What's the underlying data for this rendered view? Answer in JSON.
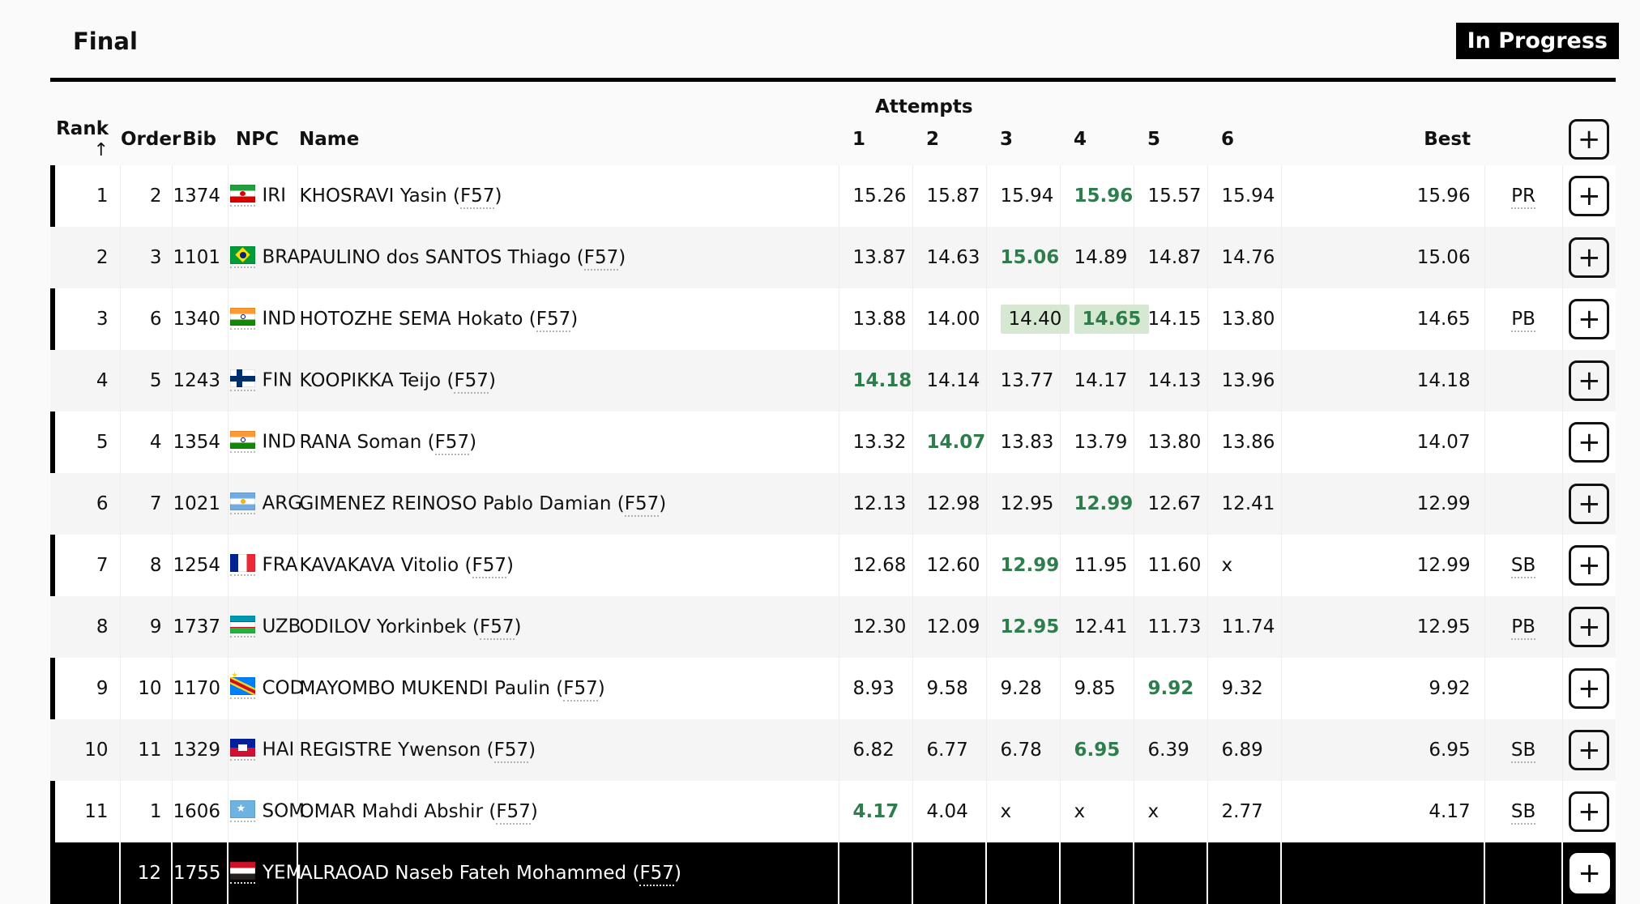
{
  "header": {
    "title": "Final",
    "status": "In Progress",
    "status_bg": "#000000",
    "status_text_color": "#ffffff"
  },
  "table": {
    "attempts_group_label": "Attempts",
    "columns": {
      "rank": "Rank",
      "sort_arrow": "↑",
      "order": "Order",
      "bib": "Bib",
      "npc": "NPC",
      "name": "Name",
      "attempt_numbers": [
        "1",
        "2",
        "3",
        "4",
        "5",
        "6"
      ],
      "best": "Best",
      "add_button": "+"
    },
    "colors": {
      "best_attempt_text": "#2f7d4d",
      "recent_attempt_highlight": "#d6e8d1",
      "row_marker": "#000000",
      "dark_row_bg": "#000000"
    },
    "rows": [
      {
        "rank": "1",
        "order": "2",
        "bib": "1374",
        "npc": "IRI",
        "name": "KHOSRAVI Yasin",
        "sport_class": "F57",
        "attempts": [
          {
            "v": "15.26"
          },
          {
            "v": "15.87"
          },
          {
            "v": "15.94"
          },
          {
            "v": "15.96",
            "green": true
          },
          {
            "v": "15.57"
          },
          {
            "v": "15.94"
          }
        ],
        "best": "15.96",
        "record": "PR",
        "marker": true,
        "dark": false
      },
      {
        "rank": "2",
        "order": "3",
        "bib": "1101",
        "npc": "BRA",
        "name": "PAULINO dos SANTOS Thiago",
        "sport_class": "F57",
        "attempts": [
          {
            "v": "13.87"
          },
          {
            "v": "14.63"
          },
          {
            "v": "15.06",
            "green": true
          },
          {
            "v": "14.89"
          },
          {
            "v": "14.87"
          },
          {
            "v": "14.76"
          }
        ],
        "best": "15.06",
        "record": "",
        "marker": false,
        "dark": false
      },
      {
        "rank": "3",
        "order": "6",
        "bib": "1340",
        "npc": "IND",
        "name": "HOTOZHE SEMA Hokato",
        "sport_class": "F57",
        "attempts": [
          {
            "v": "13.88"
          },
          {
            "v": "14.00"
          },
          {
            "v": "14.40",
            "highlight": true
          },
          {
            "v": "14.65",
            "green": true,
            "highlight": true
          },
          {
            "v": "14.15"
          },
          {
            "v": "13.80"
          }
        ],
        "best": "14.65",
        "record": "PB",
        "marker": true,
        "dark": false
      },
      {
        "rank": "4",
        "order": "5",
        "bib": "1243",
        "npc": "FIN",
        "name": "KOOPIKKA Teijo",
        "sport_class": "F57",
        "attempts": [
          {
            "v": "14.18",
            "green": true
          },
          {
            "v": "14.14"
          },
          {
            "v": "13.77"
          },
          {
            "v": "14.17"
          },
          {
            "v": "14.13"
          },
          {
            "v": "13.96"
          }
        ],
        "best": "14.18",
        "record": "",
        "marker": false,
        "dark": false
      },
      {
        "rank": "5",
        "order": "4",
        "bib": "1354",
        "npc": "IND",
        "name": "RANA Soman",
        "sport_class": "F57",
        "attempts": [
          {
            "v": "13.32"
          },
          {
            "v": "14.07",
            "green": true
          },
          {
            "v": "13.83"
          },
          {
            "v": "13.79"
          },
          {
            "v": "13.80"
          },
          {
            "v": "13.86"
          }
        ],
        "best": "14.07",
        "record": "",
        "marker": true,
        "dark": false
      },
      {
        "rank": "6",
        "order": "7",
        "bib": "1021",
        "npc": "ARG",
        "name": "GIMENEZ REINOSO Pablo Damian",
        "sport_class": "F57",
        "attempts": [
          {
            "v": "12.13"
          },
          {
            "v": "12.98"
          },
          {
            "v": "12.95"
          },
          {
            "v": "12.99",
            "green": true
          },
          {
            "v": "12.67"
          },
          {
            "v": "12.41"
          }
        ],
        "best": "12.99",
        "record": "",
        "marker": false,
        "dark": false
      },
      {
        "rank": "7",
        "order": "8",
        "bib": "1254",
        "npc": "FRA",
        "name": "KAVAKAVA Vitolio",
        "sport_class": "F57",
        "attempts": [
          {
            "v": "12.68"
          },
          {
            "v": "12.60"
          },
          {
            "v": "12.99",
            "green": true
          },
          {
            "v": "11.95"
          },
          {
            "v": "11.60"
          },
          {
            "v": "x"
          }
        ],
        "best": "12.99",
        "record": "SB",
        "marker": true,
        "dark": false
      },
      {
        "rank": "8",
        "order": "9",
        "bib": "1737",
        "npc": "UZB",
        "name": "ODILOV Yorkinbek",
        "sport_class": "F57",
        "attempts": [
          {
            "v": "12.30"
          },
          {
            "v": "12.09"
          },
          {
            "v": "12.95",
            "green": true
          },
          {
            "v": "12.41"
          },
          {
            "v": "11.73"
          },
          {
            "v": "11.74"
          }
        ],
        "best": "12.95",
        "record": "PB",
        "marker": false,
        "dark": false
      },
      {
        "rank": "9",
        "order": "10",
        "bib": "1170",
        "npc": "COD",
        "name": "MAYOMBO MUKENDI Paulin",
        "sport_class": "F57",
        "attempts": [
          {
            "v": "8.93"
          },
          {
            "v": "9.58"
          },
          {
            "v": "9.28"
          },
          {
            "v": "9.85"
          },
          {
            "v": "9.92",
            "green": true
          },
          {
            "v": "9.32"
          }
        ],
        "best": "9.92",
        "record": "",
        "marker": true,
        "dark": false
      },
      {
        "rank": "10",
        "order": "11",
        "bib": "1329",
        "npc": "HAI",
        "name": "REGISTRE Ywenson",
        "sport_class": "F57",
        "attempts": [
          {
            "v": "6.82"
          },
          {
            "v": "6.77"
          },
          {
            "v": "6.78"
          },
          {
            "v": "6.95",
            "green": true
          },
          {
            "v": "6.39"
          },
          {
            "v": "6.89"
          }
        ],
        "best": "6.95",
        "record": "SB",
        "marker": false,
        "dark": false
      },
      {
        "rank": "11",
        "order": "1",
        "bib": "1606",
        "npc": "SOM",
        "name": "OMAR Mahdi Abshir",
        "sport_class": "F57",
        "attempts": [
          {
            "v": "4.17",
            "green": true
          },
          {
            "v": "4.04"
          },
          {
            "v": "x"
          },
          {
            "v": "x"
          },
          {
            "v": "x"
          },
          {
            "v": "2.77"
          }
        ],
        "best": "4.17",
        "record": "SB",
        "marker": true,
        "dark": false
      },
      {
        "rank": "",
        "order": "12",
        "bib": "1755",
        "npc": "YEM",
        "name": "ALRAOAD Naseb Fateh Mohammed",
        "sport_class": "F57",
        "attempts": [
          {
            "v": ""
          },
          {
            "v": ""
          },
          {
            "v": ""
          },
          {
            "v": ""
          },
          {
            "v": ""
          },
          {
            "v": ""
          }
        ],
        "best": "",
        "record": "",
        "marker": false,
        "dark": true
      }
    ]
  }
}
